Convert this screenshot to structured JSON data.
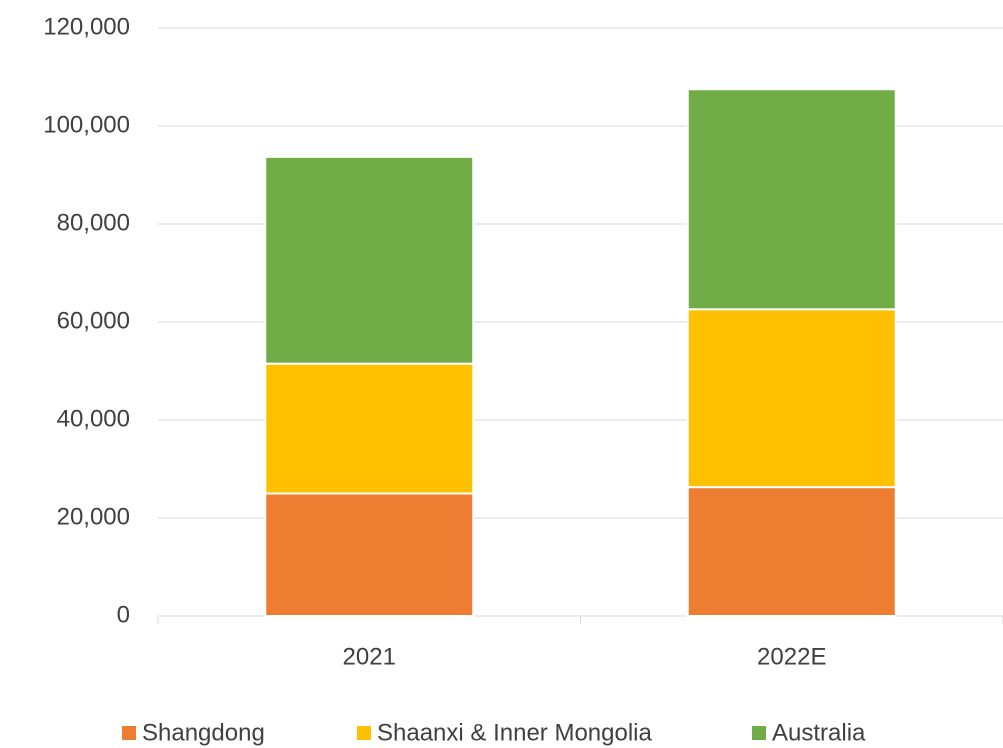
{
  "chart_data": {
    "type": "stacked_bar",
    "categories": [
      "2021",
      "2022E"
    ],
    "series": [
      {
        "name": "Shangdong",
        "color": "#ed7d31",
        "values": [
          25000,
          26300
        ]
      },
      {
        "name": "Shaanxi & Inner Mongolia",
        "color": "#ffc000",
        "values": [
          26500,
          36300
        ]
      },
      {
        "name": "Australia",
        "color": "#70ad47",
        "values": [
          42200,
          44900
        ]
      }
    ],
    "ylim": [
      0,
      120000
    ],
    "yticks": [
      0,
      {
        "value": 20000,
        "label": "20,000"
      },
      {
        "value": 40000,
        "label": "40,000"
      },
      {
        "value": 60000,
        "label": "60,000"
      },
      {
        "value": 80000,
        "label": "80,000"
      },
      {
        "value": 100000,
        "label": "100,000"
      },
      {
        "value": 120000,
        "label": "120,000"
      }
    ],
    "grid": true,
    "legend": "bottom"
  }
}
